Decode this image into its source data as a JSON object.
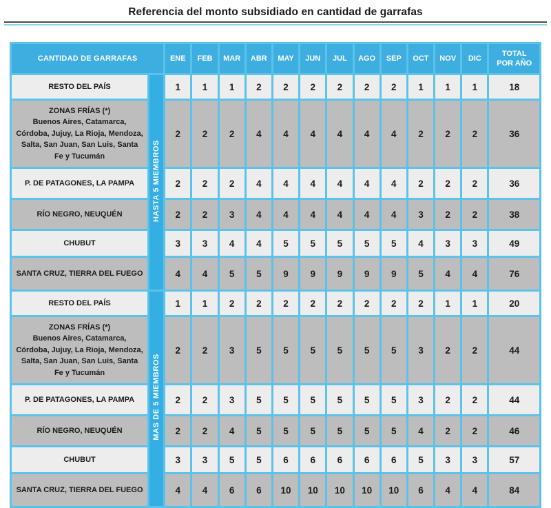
{
  "page": {
    "title": "Referencia del monto subsidiado en cantidad de garrafas"
  },
  "table": {
    "corner_header": "CANTIDAD DE GARRAFAS",
    "months": [
      "ENE",
      "FEB",
      "MAR",
      "ABR",
      "MAY",
      "JUN",
      "JUL",
      "AGO",
      "SEP",
      "OCT",
      "NOV",
      "DIC"
    ],
    "total_header": [
      "TOTAL",
      "POR AÑO"
    ],
    "groups": [
      {
        "label": "HASTA 5 MIEMBROS",
        "rows": [
          {
            "region": "RESTO DEL PAÍS",
            "sub": "",
            "values": [
              1,
              1,
              1,
              2,
              2,
              2,
              2,
              2,
              2,
              1,
              1,
              1
            ],
            "total": 18,
            "shade": "light"
          },
          {
            "region": "ZONAS FRÍAS (*)",
            "sub": "Buenos Aires, Catamarca, Córdoba, Jujuy, La Rioja, Mendoza, Salta, San Juan, San Luis, Santa Fe y Tucumán",
            "values": [
              2,
              2,
              2,
              4,
              4,
              4,
              4,
              4,
              4,
              2,
              2,
              2
            ],
            "total": 36,
            "shade": "dark"
          },
          {
            "region": "P. DE PATAGONES, LA PAMPA",
            "sub": "",
            "values": [
              2,
              2,
              2,
              4,
              4,
              4,
              4,
              4,
              4,
              2,
              2,
              2
            ],
            "total": 36,
            "shade": "light"
          },
          {
            "region": "RÍO NEGRO, NEUQUÉN",
            "sub": "",
            "values": [
              2,
              2,
              3,
              4,
              4,
              4,
              4,
              4,
              4,
              3,
              2,
              2
            ],
            "total": 38,
            "shade": "dark"
          },
          {
            "region": "CHUBUT",
            "sub": "",
            "values": [
              3,
              3,
              4,
              4,
              5,
              5,
              5,
              5,
              5,
              4,
              3,
              3
            ],
            "total": 49,
            "shade": "light"
          },
          {
            "region": "SANTA CRUZ, TIERRA DEL FUEGO",
            "sub": "",
            "values": [
              4,
              4,
              5,
              5,
              9,
              9,
              9,
              9,
              9,
              5,
              4,
              4
            ],
            "total": 76,
            "shade": "dark"
          }
        ]
      },
      {
        "label": "MAS DE 5 MIEMBROS",
        "rows": [
          {
            "region": "RESTO DEL PAÍS",
            "sub": "",
            "values": [
              1,
              1,
              2,
              2,
              2,
              2,
              2,
              2,
              2,
              2,
              1,
              1
            ],
            "total": 20,
            "shade": "light"
          },
          {
            "region": "ZONAS FRÍAS (*)",
            "sub": "Buenos Aires, Catamarca, Córdoba, Jujuy, La Rioja, Mendoza, Salta, San Juan, San Luis, Santa Fe y Tucumán",
            "values": [
              2,
              2,
              3,
              5,
              5,
              5,
              5,
              5,
              5,
              3,
              2,
              2
            ],
            "total": 44,
            "shade": "dark"
          },
          {
            "region": "P. DE PATAGONES, LA PAMPA",
            "sub": "",
            "values": [
              2,
              2,
              3,
              5,
              5,
              5,
              5,
              5,
              5,
              3,
              2,
              2
            ],
            "total": 44,
            "shade": "light"
          },
          {
            "region": "RÍO NEGRO, NEUQUÉN",
            "sub": "",
            "values": [
              2,
              2,
              4,
              5,
              5,
              5,
              5,
              5,
              5,
              4,
              2,
              2
            ],
            "total": 46,
            "shade": "dark"
          },
          {
            "region": "CHUBUT",
            "sub": "",
            "values": [
              3,
              3,
              5,
              5,
              6,
              6,
              6,
              6,
              6,
              5,
              3,
              3
            ],
            "total": 57,
            "shade": "light"
          },
          {
            "region": "SANTA CRUZ, TIERRA DEL FUEGO",
            "sub": "",
            "values": [
              4,
              4,
              6,
              6,
              10,
              10,
              10,
              10,
              10,
              6,
              4,
              4
            ],
            "total": 84,
            "shade": "dark"
          }
        ]
      }
    ]
  },
  "colors": {
    "header_blue": "#3EAEE0",
    "band_blue": "#35AFE3",
    "grid_blue": "#5BC2E9",
    "light_row": "#EDEDED",
    "dark_row": "#BDBDBD",
    "title_rule_dark": "#4A4A4A",
    "title_rule_blue": "#8FD2EC",
    "text_dark": "#1A1A1A"
  }
}
